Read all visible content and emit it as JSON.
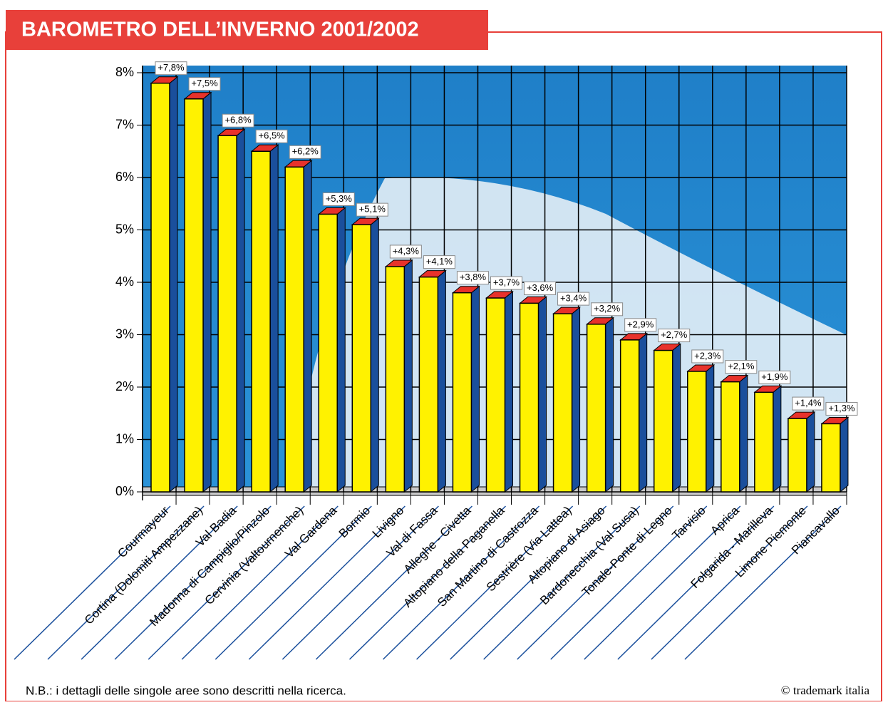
{
  "chart_data": {
    "type": "bar3d",
    "title": "BAROMETRO DELL’INVERNO 2001/2002",
    "categories": [
      "Courmayeur",
      "Cortina (Dolomiti Ampezzane)",
      "Val Badia",
      "Madonna di Campiglio/Pinzolo",
      "Cervinia (Valtournenche)",
      "Val Gardena",
      "Bormio",
      "Livigno",
      "Val di Fassa",
      "Alleghe - Civetta",
      "Altopiano della Paganella",
      "San Martino di Castrozza",
      "Sestrière (Via Lattea)",
      "Altopiano di Asiago",
      "Bardonecchia (Val Susa)",
      "Tonale-Ponte di Legno",
      "Tarvisio",
      "Aprica",
      "Folgarida - Marilleva",
      "Limone Piemonte",
      "Piancavallo"
    ],
    "values": [
      7.8,
      7.5,
      6.8,
      6.5,
      6.2,
      5.3,
      5.1,
      4.3,
      4.1,
      3.8,
      3.7,
      3.6,
      3.4,
      3.2,
      2.9,
      2.7,
      2.3,
      2.1,
      1.9,
      1.4,
      1.3
    ],
    "value_labels": [
      "+7,8%",
      "+7,5%",
      "+6,8%",
      "+6,5%",
      "+6,2%",
      "+5,3%",
      "+5,1%",
      "+4,3%",
      "+4,1%",
      "+3,8%",
      "+3,7%",
      "+3,6%",
      "+3,4%",
      "+3,2%",
      "+2,9%",
      "+2,7%",
      "+2,3%",
      "+2,1%",
      "+1,9%",
      "+1,4%",
      "+1,3%"
    ],
    "colors": {
      "front": "#fff200",
      "side": "#1a4f9c",
      "top": "#e8322b"
    },
    "ylim": [
      0,
      8
    ],
    "yticks": [
      {
        "value": 0,
        "label": "0%"
      },
      {
        "value": 1,
        "label": "1%"
      },
      {
        "value": 2,
        "label": "2%"
      },
      {
        "value": 3,
        "label": "3%"
      },
      {
        "value": 4,
        "label": "4%"
      },
      {
        "value": 5,
        "label": "5%"
      },
      {
        "value": 6,
        "label": "6%"
      },
      {
        "value": 7,
        "label": "7%"
      },
      {
        "value": 8,
        "label": "8%"
      }
    ],
    "grid": true,
    "footnote": "N.B.: i dettagli delle singole aree sono descritti nella ricerca.",
    "credit": "© trademark italia"
  }
}
